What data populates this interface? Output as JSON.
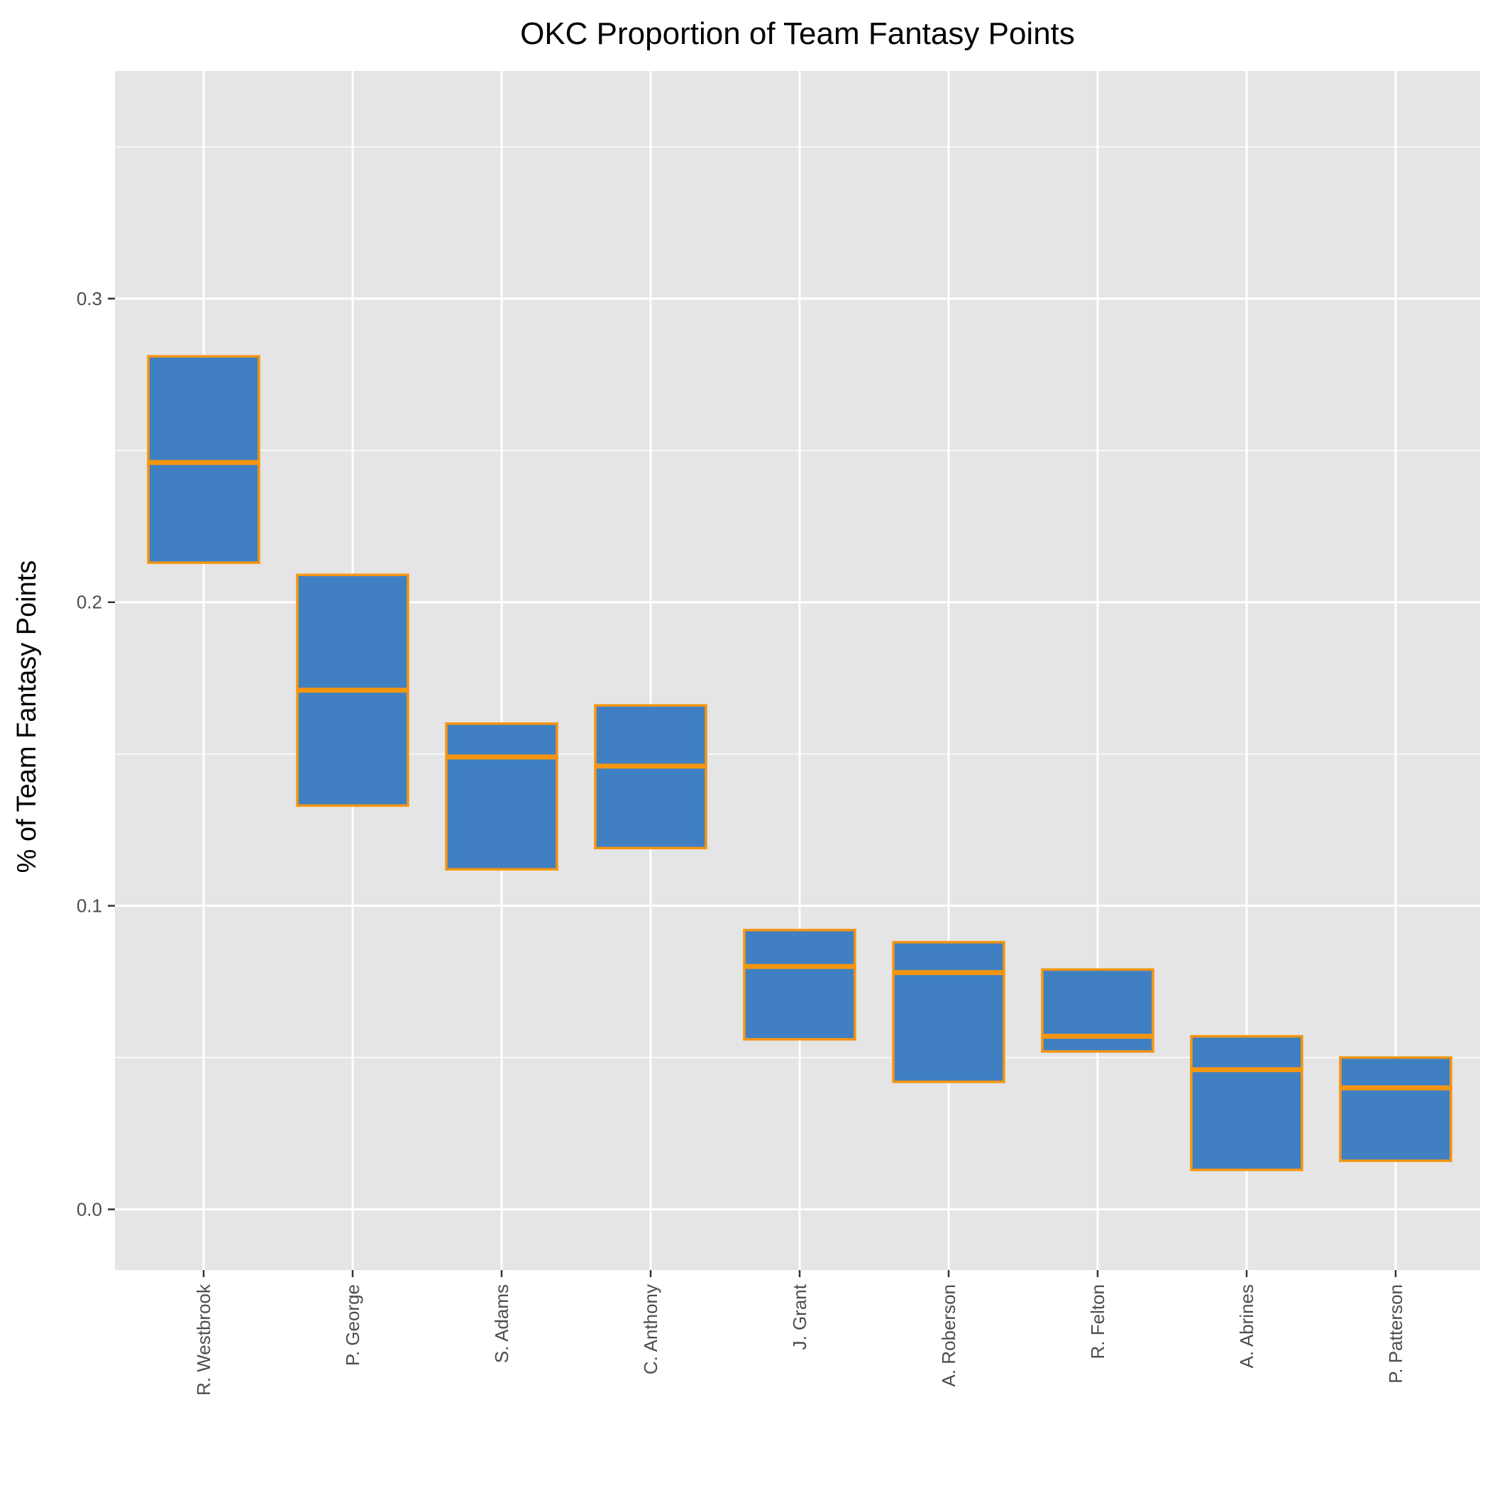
{
  "chart_data": {
    "type": "box",
    "title": "OKC Proportion of Team Fantasy Points",
    "xlabel": "",
    "ylabel": "% of Team Fantasy Points",
    "ylim": [
      -0.02,
      0.375
    ],
    "yticks": [
      0.0,
      0.1,
      0.2,
      0.3
    ],
    "ytick_labels": [
      "0.0",
      "0.1",
      "0.2",
      "0.3"
    ],
    "categories": [
      "R. Westbrook",
      "P. George",
      "S. Adams",
      "C. Anthony",
      "J. Grant",
      "A. Roberson",
      "R. Felton",
      "A. Abrines",
      "P. Patterson"
    ],
    "q1": [
      0.213,
      0.133,
      0.112,
      0.119,
      0.056,
      0.042,
      0.052,
      0.013,
      0.016
    ],
    "median": [
      0.246,
      0.171,
      0.149,
      0.146,
      0.08,
      0.078,
      0.057,
      0.046,
      0.04
    ],
    "q3": [
      0.281,
      0.209,
      0.16,
      0.166,
      0.092,
      0.088,
      0.079,
      0.057,
      0.05
    ],
    "grid": true,
    "legend": "none",
    "colors": {
      "fill": "#4080c2",
      "outline": "#f6950f",
      "panel": "#e5e5e5",
      "grid": "#ffffff"
    }
  }
}
